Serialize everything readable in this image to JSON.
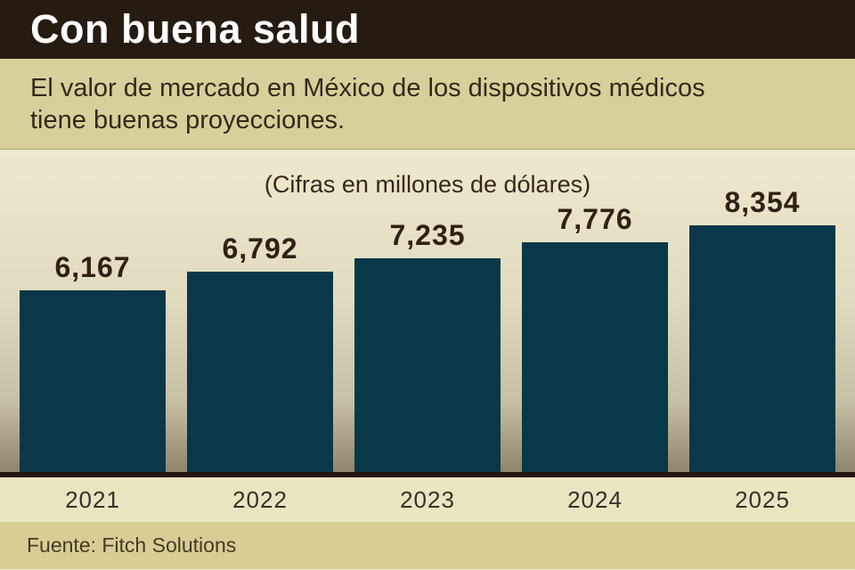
{
  "header": {
    "title": "Con buena salud"
  },
  "subtitle": {
    "lines": [
      "El valor de mercado en México de los dispositivos médicos",
      "tiene buenas proyecciones."
    ]
  },
  "chart_data": {
    "type": "bar",
    "title": "Con buena salud",
    "note": "(Cifras en millones de dólares)",
    "categories": [
      "2021",
      "2022",
      "2023",
      "2024",
      "2025"
    ],
    "values": [
      6167,
      6792,
      7235,
      7776,
      8354
    ],
    "value_labels": [
      "6,167",
      "6,792",
      "7,235",
      "7,776",
      "8,354"
    ],
    "ylim": [
      0,
      8354
    ],
    "grid": false,
    "legend": "none",
    "source": "Fuente: Fitch Solutions"
  },
  "colors": {
    "header_bg": "#261B10",
    "title_text": "#FFFFFF",
    "subtitle_bg": "#D8D09B",
    "subtitle_text": "#35291A",
    "bar": "#0A3848",
    "value_label_text": "#2F2114",
    "baseline": "#24150B",
    "axis_strip_bg": "#EAE5C1",
    "axis_label_text": "#33312A",
    "footer_bg": "#D7CE95",
    "footer_text": "#453A22",
    "plot_bg_top": "#EEE9CC",
    "plot_bg_bottom": "#8F856B"
  }
}
